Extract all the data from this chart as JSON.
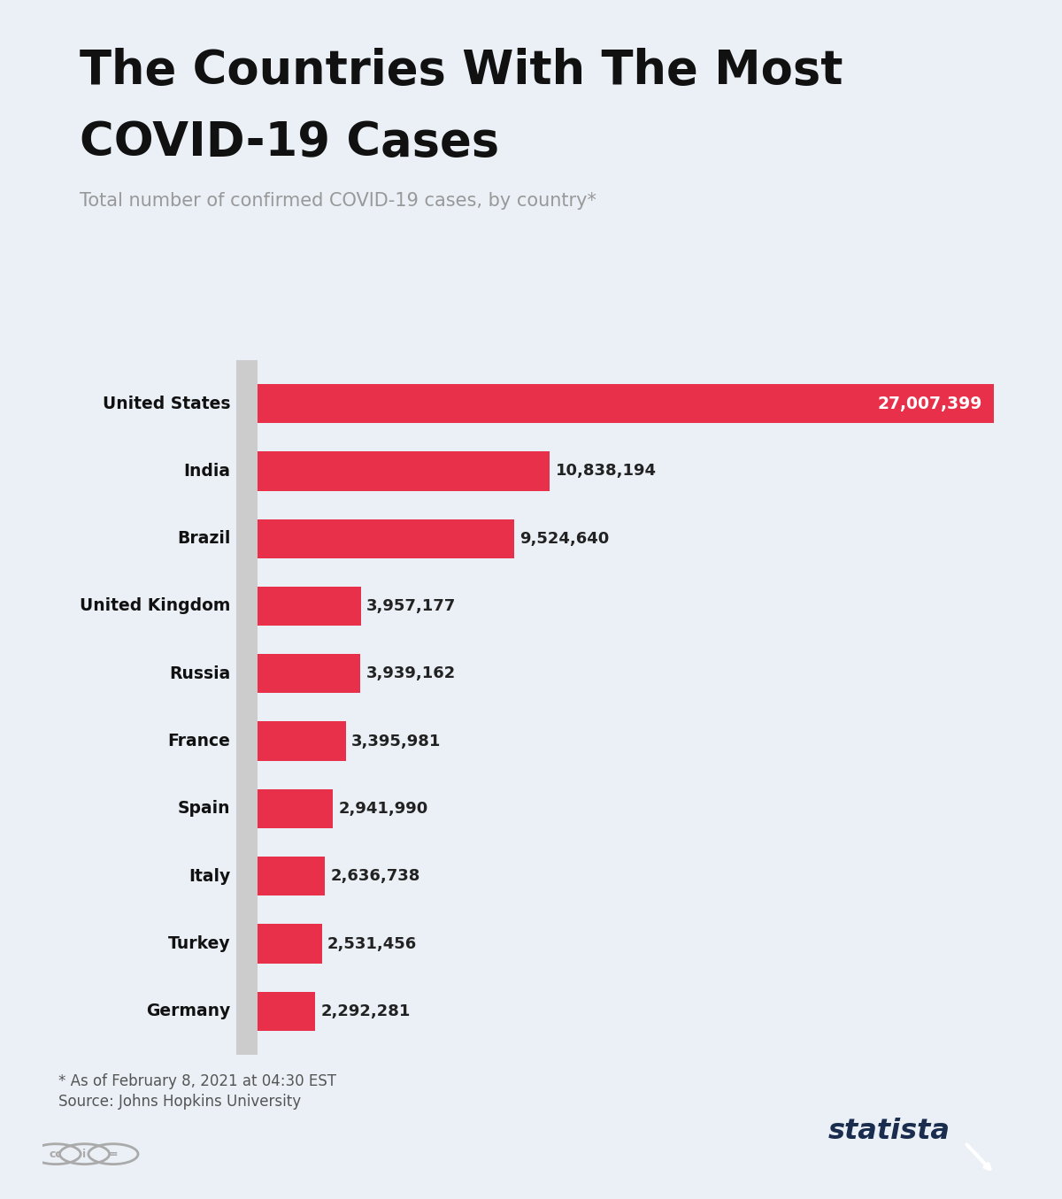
{
  "title_line1": "The Countries With The Most",
  "title_line2": "COVID-19 Cases",
  "subtitle": "Total number of confirmed COVID-19 cases, by country*",
  "footnote_line1": "* As of February 8, 2021 at 04:30 EST",
  "footnote_line2": "Source: Johns Hopkins University",
  "background_color": "#eaf0f6",
  "bar_color": "#e8304a",
  "title_accent_color": "#e8304a",
  "title_color": "#111111",
  "subtitle_color": "#999999",
  "label_color": "#111111",
  "value_color_inside": "#ffffff",
  "value_color_outside": "#222222",
  "statista_color": "#1a2d4e",
  "footnote_color": "#555555",
  "icon_color": "#aaaaaa",
  "countries": [
    "United States",
    "India",
    "Brazil",
    "United Kingdom",
    "Russia",
    "France",
    "Spain",
    "Italy",
    "Turkey",
    "Germany"
  ],
  "values": [
    27007399,
    10838194,
    9524640,
    3957177,
    3939162,
    3395981,
    2941990,
    2636738,
    2531456,
    2292281
  ],
  "value_labels": [
    "27,007,399",
    "10,838,194",
    "9,524,640",
    "3,957,177",
    "3,939,162",
    "3,395,981",
    "2,941,990",
    "2,636,738",
    "2,531,456",
    "2,292,281"
  ],
  "inside_threshold": 12000000,
  "xlim_max": 29500000,
  "bar_height": 0.58
}
